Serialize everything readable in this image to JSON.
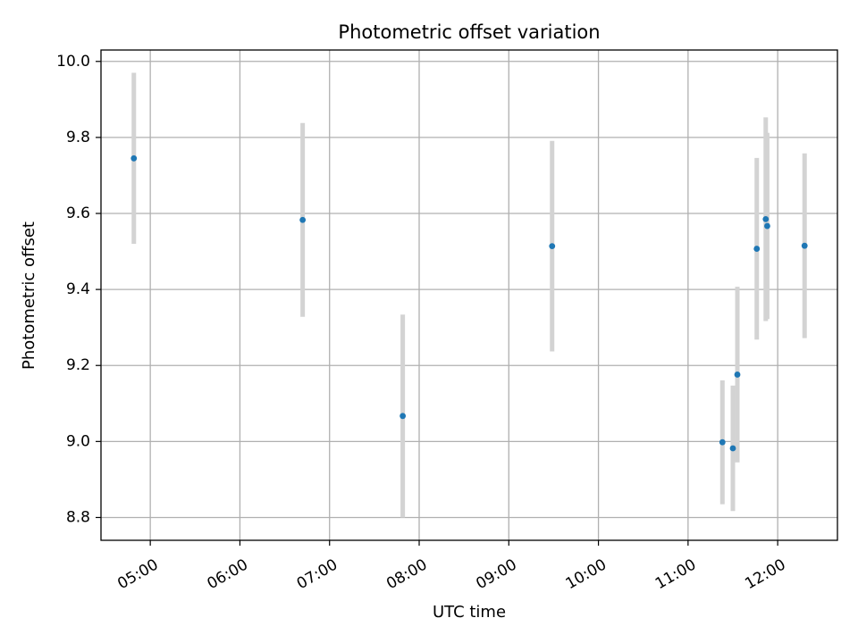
{
  "chart_data": {
    "type": "scatter",
    "title": "Photometric offset variation",
    "xlabel": "UTC time",
    "ylabel": "Photometric offset",
    "x_format": "HH:MM",
    "xlim": [
      "04:27",
      "12:40"
    ],
    "ylim": [
      8.74,
      10.03
    ],
    "x_ticks": [
      "05:00",
      "06:00",
      "07:00",
      "08:00",
      "09:00",
      "10:00",
      "11:00",
      "12:00"
    ],
    "y_ticks": [
      "8.8",
      "9.0",
      "9.2",
      "9.4",
      "9.6",
      "9.8",
      "10.0"
    ],
    "grid": true,
    "colors": {
      "point": "#1f77b4",
      "errorbar": "#d3d3d3"
    },
    "series": [
      {
        "points": [
          {
            "x": "04:49",
            "y": 9.745,
            "yerr": 0.225
          },
          {
            "x": "06:42",
            "y": 9.583,
            "yerr": 0.255
          },
          {
            "x": "07:49",
            "y": 9.067,
            "yerr": 0.267
          },
          {
            "x": "09:29",
            "y": 9.514,
            "yerr": 0.277
          },
          {
            "x": "11:23",
            "y": 8.998,
            "yerr": 0.163
          },
          {
            "x": "11:30",
            "y": 8.982,
            "yerr": 0.165
          },
          {
            "x": "11:33",
            "y": 9.176,
            "yerr": 0.231
          },
          {
            "x": "11:46",
            "y": 9.507,
            "yerr": 0.239
          },
          {
            "x": "11:52",
            "y": 9.585,
            "yerr": 0.268
          },
          {
            "x": "11:53",
            "y": 9.567,
            "yerr": 0.245
          },
          {
            "x": "12:18",
            "y": 9.515,
            "yerr": 0.243
          }
        ]
      }
    ]
  }
}
